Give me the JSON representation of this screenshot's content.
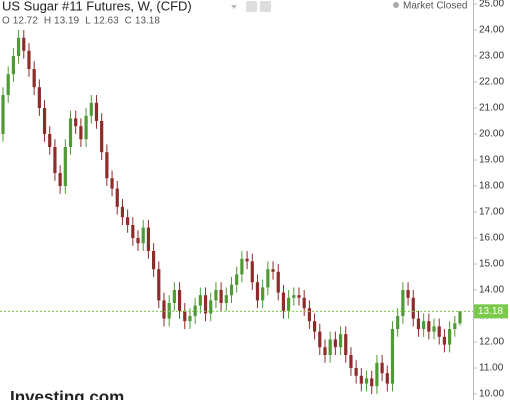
{
  "chart_data": {
    "type": "candlestick",
    "title": "US Sugar #11 Futures, W, (CFD)",
    "status": "Market Closed",
    "ohlc_labels": [
      "O",
      "H",
      "L",
      "C"
    ],
    "logo": "Investing.com",
    "up_color": "#4f9a35",
    "down_color": "#8e2b2b",
    "last_color": "#79c94a",
    "open": [
      20.0,
      21.5,
      22.3,
      23.0,
      23.7,
      23.2,
      22.5,
      21.8,
      21.0,
      20.0,
      19.5,
      18.5,
      18.0,
      19.5,
      20.6,
      20.3,
      19.8,
      20.7,
      21.2,
      20.5,
      19.3,
      18.3,
      17.9,
      17.2,
      16.8,
      16.5,
      16.0,
      15.8,
      16.4,
      15.5,
      14.8,
      13.6,
      12.9,
      13.5,
      14.0,
      13.2,
      12.8,
      13.0,
      13.4,
      13.8,
      13.1,
      13.6,
      14.0,
      13.5,
      13.8,
      14.2,
      14.6,
      15.2,
      15.1,
      14.3,
      13.6,
      14.1,
      14.8,
      14.7,
      13.9,
      13.2,
      13.7,
      13.8,
      13.7,
      13.3,
      12.8,
      12.4,
      11.8,
      11.5,
      12.1,
      11.8,
      12.3,
      11.5,
      11.0,
      10.7,
      10.4,
      10.6,
      10.3,
      11.2,
      10.8,
      10.4,
      12.5,
      13.0,
      14.0,
      13.7,
      12.9,
      12.5,
      12.8,
      12.4,
      12.6,
      12.2,
      11.9,
      12.5,
      12.72
    ],
    "high": [
      21.8,
      22.6,
      23.3,
      24.0,
      24.0,
      23.5,
      22.8,
      22.1,
      21.3,
      20.3,
      19.8,
      18.8,
      19.8,
      20.9,
      20.9,
      20.6,
      21.0,
      21.5,
      21.5,
      20.8,
      19.6,
      18.6,
      18.2,
      17.5,
      17.1,
      16.8,
      16.3,
      16.7,
      16.7,
      15.8,
      15.1,
      13.9,
      13.8,
      14.3,
      14.3,
      13.5,
      13.3,
      13.7,
      14.1,
      14.1,
      13.9,
      14.3,
      14.3,
      14.1,
      14.5,
      14.9,
      15.5,
      15.5,
      15.4,
      14.6,
      14.4,
      15.1,
      15.1,
      15.0,
      14.2,
      14.0,
      14.1,
      14.1,
      14.0,
      13.6,
      13.1,
      12.7,
      12.1,
      12.4,
      12.4,
      12.6,
      12.6,
      11.8,
      11.3,
      11.0,
      10.9,
      10.9,
      11.5,
      11.5,
      11.1,
      12.8,
      13.3,
      14.3,
      14.3,
      14.0,
      13.2,
      13.1,
      13.1,
      12.9,
      12.9,
      12.5,
      12.8,
      13.0,
      13.19
    ],
    "low": [
      19.7,
      21.2,
      22.0,
      22.7,
      22.9,
      22.2,
      21.5,
      20.7,
      19.7,
      19.2,
      18.2,
      17.7,
      17.7,
      19.2,
      20.0,
      19.5,
      19.5,
      20.4,
      20.2,
      19.0,
      18.0,
      17.6,
      16.9,
      16.5,
      16.2,
      15.7,
      15.5,
      15.5,
      15.2,
      14.5,
      13.3,
      12.6,
      12.6,
      13.2,
      12.9,
      12.5,
      12.5,
      12.7,
      13.1,
      12.8,
      12.8,
      13.3,
      13.2,
      13.2,
      13.5,
      13.9,
      14.3,
      14.8,
      14.0,
      13.3,
      13.3,
      13.8,
      14.4,
      13.6,
      12.9,
      12.9,
      13.4,
      13.4,
      13.0,
      12.5,
      12.1,
      11.5,
      11.2,
      11.2,
      11.5,
      11.5,
      11.2,
      10.7,
      10.4,
      10.1,
      10.1,
      10.0,
      10.0,
      10.5,
      10.1,
      10.1,
      12.2,
      12.7,
      13.4,
      12.6,
      12.2,
      12.2,
      12.1,
      12.1,
      11.9,
      11.6,
      11.6,
      12.2,
      12.63
    ],
    "close": [
      21.5,
      22.3,
      23.0,
      23.7,
      23.2,
      22.5,
      21.8,
      21.0,
      20.0,
      19.5,
      18.5,
      18.0,
      19.5,
      20.6,
      20.3,
      19.8,
      20.7,
      21.2,
      20.5,
      19.3,
      18.3,
      17.9,
      17.2,
      16.8,
      16.5,
      16.0,
      15.8,
      16.4,
      15.5,
      14.8,
      13.6,
      12.9,
      13.5,
      14.0,
      13.2,
      12.8,
      13.0,
      13.4,
      13.8,
      13.1,
      13.6,
      14.0,
      13.5,
      13.8,
      14.2,
      14.6,
      15.2,
      15.1,
      14.3,
      13.6,
      14.1,
      14.8,
      14.7,
      13.9,
      13.2,
      13.7,
      13.8,
      13.7,
      13.3,
      12.8,
      12.4,
      11.8,
      11.5,
      12.1,
      11.8,
      12.3,
      11.5,
      11.0,
      10.7,
      10.4,
      10.6,
      10.3,
      11.2,
      10.8,
      10.4,
      12.5,
      13.0,
      14.0,
      13.7,
      12.9,
      12.5,
      12.8,
      12.4,
      12.6,
      12.2,
      11.9,
      12.5,
      12.72,
      13.18
    ],
    "ylim": [
      10,
      25
    ],
    "yticks": [
      {
        "value": 25,
        "label": "25.00"
      },
      {
        "value": 24,
        "label": "24.00"
      },
      {
        "value": 23,
        "label": "23.00"
      },
      {
        "value": 22,
        "label": "22.00"
      },
      {
        "value": 21,
        "label": "21.00"
      },
      {
        "value": 20,
        "label": "20.00"
      },
      {
        "value": 19,
        "label": "19.00"
      },
      {
        "value": 18,
        "label": "18.00"
      },
      {
        "value": 17,
        "label": "17.00"
      },
      {
        "value": 16,
        "label": "16.00"
      },
      {
        "value": 15,
        "label": "15.00"
      },
      {
        "value": 14,
        "label": "14.00"
      },
      {
        "value": 13,
        "label": "13.00"
      },
      {
        "value": 12,
        "label": "12.00"
      },
      {
        "value": 11,
        "label": "11.00"
      },
      {
        "value": 10,
        "label": "10.00"
      }
    ]
  }
}
